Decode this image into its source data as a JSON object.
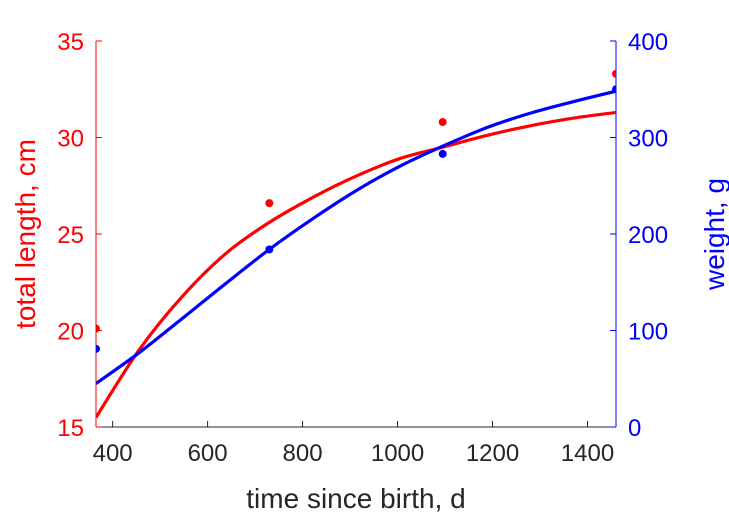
{
  "chart_data": {
    "type": "scatter",
    "title": "",
    "xlabel": "time since birth, d",
    "ylabel_left": "total length, cm",
    "ylabel_right": "weight, g",
    "xlim": [
      365,
      1460
    ],
    "ylim_left": [
      15,
      35
    ],
    "ylim_right": [
      0,
      400
    ],
    "x_ticks": [
      400,
      600,
      800,
      1000,
      1200,
      1400
    ],
    "y_ticks_left": [
      15,
      20,
      25,
      30,
      35
    ],
    "y_ticks_right": [
      0,
      100,
      200,
      300,
      400
    ],
    "grid": false,
    "colors": {
      "left": "#ff0000",
      "right": "#0000ff",
      "xaxis": "#262626"
    },
    "series": [
      {
        "axis": "left",
        "color": "#ff0000",
        "points": {
          "x": [
            365,
            730,
            1095,
            1460
          ],
          "y": [
            20.1,
            26.6,
            30.8,
            33.3
          ]
        },
        "fit": {
          "x": [
            365,
            456,
            548,
            639,
            730,
            822,
            913,
            1004,
            1095,
            1187,
            1278,
            1369,
            1460
          ],
          "y": [
            15.5,
            19.0,
            21.8,
            24.0,
            25.6,
            26.9,
            28.0,
            28.9,
            29.5,
            30.1,
            30.6,
            31.0,
            31.3
          ]
        }
      },
      {
        "axis": "right",
        "color": "#0000ff",
        "points": {
          "x": [
            365,
            730,
            1095,
            1460
          ],
          "y": [
            81,
            184,
            283,
            350
          ]
        },
        "fit": {
          "x": [
            365,
            456,
            548,
            639,
            730,
            822,
            913,
            1004,
            1095,
            1187,
            1278,
            1369,
            1460
          ],
          "y": [
            45,
            77,
            113,
            149,
            184,
            216,
            245,
            270,
            291,
            310,
            325,
            337,
            348
          ]
        }
      }
    ]
  }
}
